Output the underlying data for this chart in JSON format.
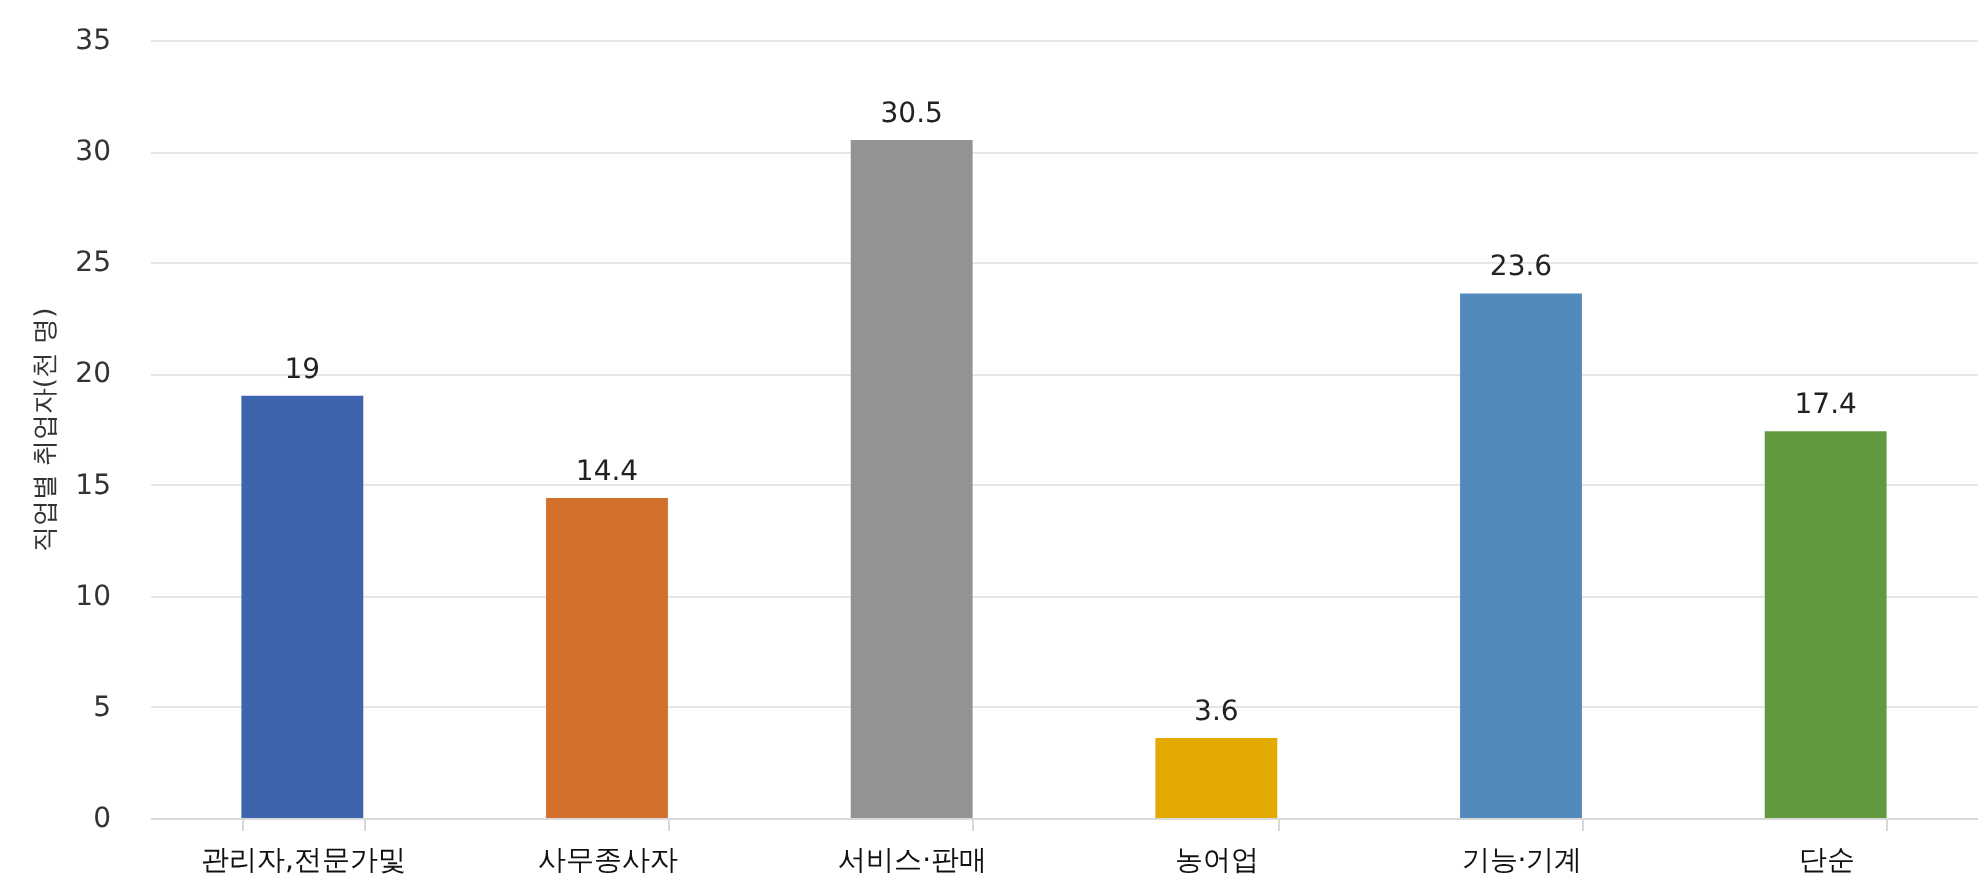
{
  "chart_data": {
    "type": "bar",
    "ylabel": "직업별 취업자(천 명)",
    "categories": [
      "관리자,전문가및",
      "사무종사자",
      "서비스·판매",
      "농어업",
      "기능·기계",
      "단순"
    ],
    "values": [
      19,
      14.4,
      30.5,
      3.6,
      23.6,
      17.4
    ],
    "colors": [
      "#3e64ad",
      "#d3702b",
      "#939393",
      "#e2aa00",
      "#528abd",
      "#629a3f"
    ],
    "ylim": [
      0,
      35
    ],
    "yticks": [
      0,
      5,
      10,
      15,
      20,
      25,
      30,
      35
    ],
    "grid": "y",
    "data_labels": true
  }
}
